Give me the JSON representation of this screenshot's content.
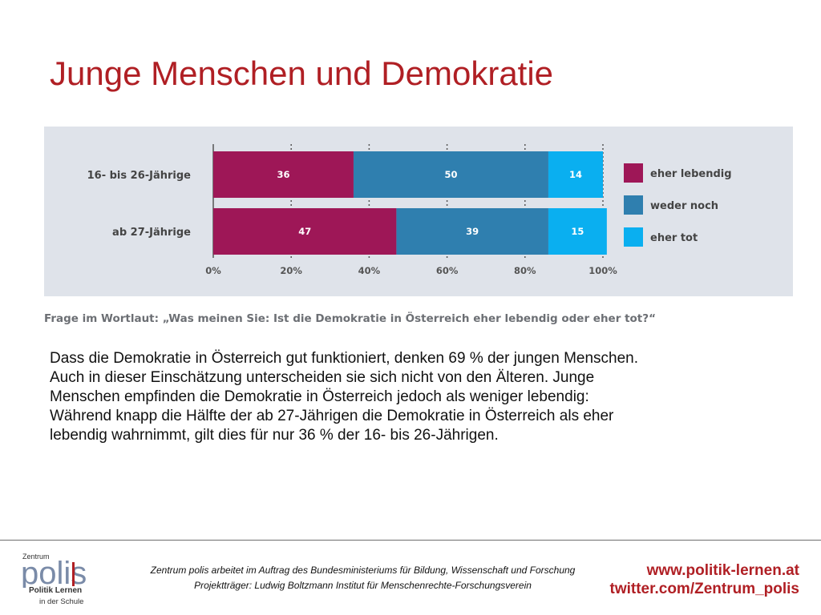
{
  "title": "Junge Menschen und Demokratie",
  "question": "Frage im Wortlaut: „Was meinen Sie: Ist die Demokratie in Österreich eher lebendig oder eher tot?“",
  "body_lines": [
    "Dass die Demokratie in Österreich gut funktioniert, denken 69 % der jungen Menschen.",
    "Auch in dieser Einschätzung unterscheiden sie sich nicht von den Älteren. Junge",
    "Menschen empfinden die Demokratie in Österreich jedoch als weniger lebendig:",
    "Während knapp die Hälfte der ab 27-Jährigen die Demokratie in Österreich als eher",
    "lebendig wahrnimmt, gilt dies für nur 36 % der 16- bis 26-Jährigen."
  ],
  "footer": {
    "note_line1": "Zentrum polis arbeitet im Auftrag des Bundesministeriums für Bildung, Wissenschaft und Forschung",
    "note_line2": "Projektträger: Ludwig Boltzmann Institut für Menschenrechte-Forschungsverein",
    "link1": "www.politik-lernen.at",
    "link2": "twitter.com/Zentrum_polis",
    "logo": {
      "top": "Zentrum",
      "word": "polis",
      "line2": "Politik Lernen",
      "line3": "in der Schule"
    }
  },
  "colors": {
    "title": "#b01f24",
    "eher_lebendig": "#9e1757",
    "weder_noch": "#2f7faf",
    "eher_tot": "#0aaff0",
    "chart_bg": "#dfe3ea"
  },
  "chart_data": {
    "type": "bar",
    "orientation": "horizontal",
    "stacked": true,
    "categories": [
      "16- bis 26-Jährige",
      "ab 27-Jährige"
    ],
    "series": [
      {
        "name": "eher lebendig",
        "values": [
          36,
          47
        ],
        "color": "#9e1757"
      },
      {
        "name": "weder noch",
        "values": [
          50,
          39
        ],
        "color": "#2f7faf"
      },
      {
        "name": "eher tot",
        "values": [
          14,
          15
        ],
        "color": "#0aaff0"
      }
    ],
    "xticks": [
      "0%",
      "20%",
      "40%",
      "60%",
      "80%",
      "100%"
    ],
    "xlim": [
      0,
      100
    ],
    "grid": true,
    "legend": "right"
  }
}
